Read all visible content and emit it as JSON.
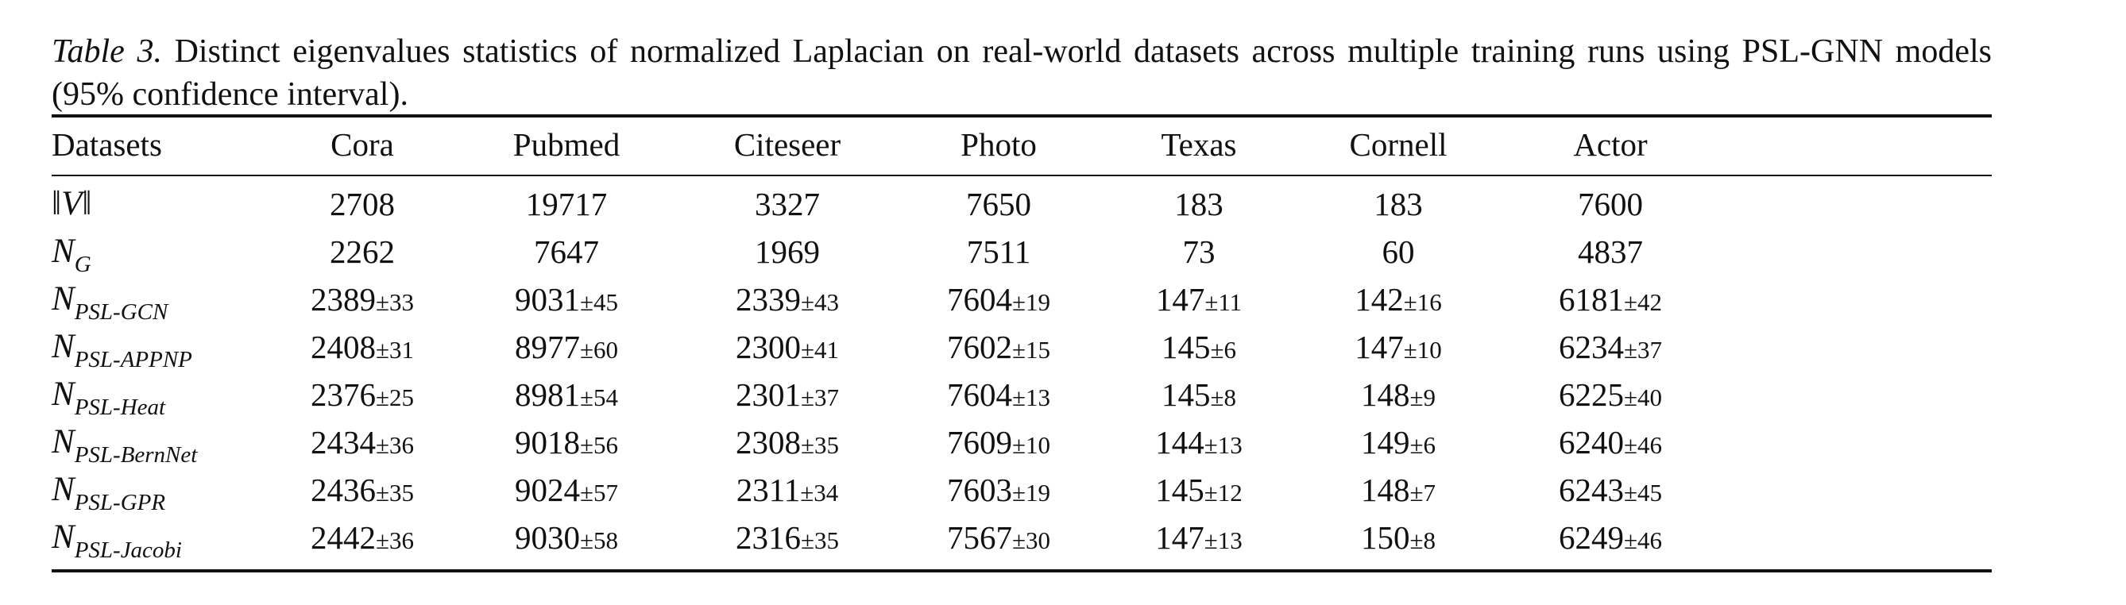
{
  "caption": {
    "label": "Table 3.",
    "text": "Distinct eigenvalues statistics of normalized Laplacian on real-world datasets across multiple training runs using PSL-GNN models (95% confidence interval)."
  },
  "table": {
    "header": [
      "Datasets",
      "Cora",
      "Pubmed",
      "Citeseer",
      "Photo",
      "Texas",
      "Cornell",
      "Actor"
    ],
    "rows": [
      {
        "label": {
          "symbol": "‖V‖"
        },
        "cells": [
          {
            "value": "2708"
          },
          {
            "value": "19717"
          },
          {
            "value": "3327"
          },
          {
            "value": "7650"
          },
          {
            "value": "183"
          },
          {
            "value": "183"
          },
          {
            "value": "7600"
          }
        ]
      },
      {
        "label": {
          "symbol": "N",
          "subscript": "G"
        },
        "cells": [
          {
            "value": "2262"
          },
          {
            "value": "7647"
          },
          {
            "value": "1969"
          },
          {
            "value": "7511"
          },
          {
            "value": "73"
          },
          {
            "value": "60"
          },
          {
            "value": "4837"
          }
        ]
      },
      {
        "label": {
          "symbol": "N",
          "subscript": "PSL-GCN"
        },
        "cells": [
          {
            "value": "2389",
            "ci": "±33"
          },
          {
            "value": "9031",
            "ci": "±45"
          },
          {
            "value": "2339",
            "ci": "±43"
          },
          {
            "value": "7604",
            "ci": "±19"
          },
          {
            "value": "147",
            "ci": "±11"
          },
          {
            "value": "142",
            "ci": "±16"
          },
          {
            "value": "6181",
            "ci": "±42"
          }
        ]
      },
      {
        "label": {
          "symbol": "N",
          "subscript": "PSL-APPNP"
        },
        "cells": [
          {
            "value": "2408",
            "ci": "±31"
          },
          {
            "value": "8977",
            "ci": "±60"
          },
          {
            "value": "2300",
            "ci": "±41"
          },
          {
            "value": "7602",
            "ci": "±15"
          },
          {
            "value": "145",
            "ci": "±6"
          },
          {
            "value": "147",
            "ci": "±10"
          },
          {
            "value": "6234",
            "ci": "±37"
          }
        ]
      },
      {
        "label": {
          "symbol": "N",
          "subscript": "PSL-Heat"
        },
        "cells": [
          {
            "value": "2376",
            "ci": "±25"
          },
          {
            "value": "8981",
            "ci": "±54"
          },
          {
            "value": "2301",
            "ci": "±37"
          },
          {
            "value": "7604",
            "ci": "±13"
          },
          {
            "value": "145",
            "ci": "±8"
          },
          {
            "value": "148",
            "ci": "±9"
          },
          {
            "value": "6225",
            "ci": "±40"
          }
        ]
      },
      {
        "label": {
          "symbol": "N",
          "subscript": "PSL-BernNet"
        },
        "cells": [
          {
            "value": "2434",
            "ci": "±36"
          },
          {
            "value": "9018",
            "ci": "±56"
          },
          {
            "value": "2308",
            "ci": "±35"
          },
          {
            "value": "7609",
            "ci": "±10"
          },
          {
            "value": "144",
            "ci": "±13"
          },
          {
            "value": "149",
            "ci": "±6"
          },
          {
            "value": "6240",
            "ci": "±46"
          }
        ]
      },
      {
        "label": {
          "symbol": "N",
          "subscript": "PSL-GPR"
        },
        "cells": [
          {
            "value": "2436",
            "ci": "±35"
          },
          {
            "value": "9024",
            "ci": "±57"
          },
          {
            "value": "2311",
            "ci": "±34"
          },
          {
            "value": "7603",
            "ci": "±19"
          },
          {
            "value": "145",
            "ci": "±12"
          },
          {
            "value": "148",
            "ci": "±7"
          },
          {
            "value": "6243",
            "ci": "±45"
          }
        ]
      },
      {
        "label": {
          "symbol": "N",
          "subscript": "PSL-Jacobi"
        },
        "cells": [
          {
            "value": "2442",
            "ci": "±36"
          },
          {
            "value": "9030",
            "ci": "±58"
          },
          {
            "value": "2316",
            "ci": "±35"
          },
          {
            "value": "7567",
            "ci": "±30"
          },
          {
            "value": "147",
            "ci": "±13"
          },
          {
            "value": "150",
            "ci": "±8"
          },
          {
            "value": "6249",
            "ci": "±46"
          }
        ]
      }
    ]
  }
}
